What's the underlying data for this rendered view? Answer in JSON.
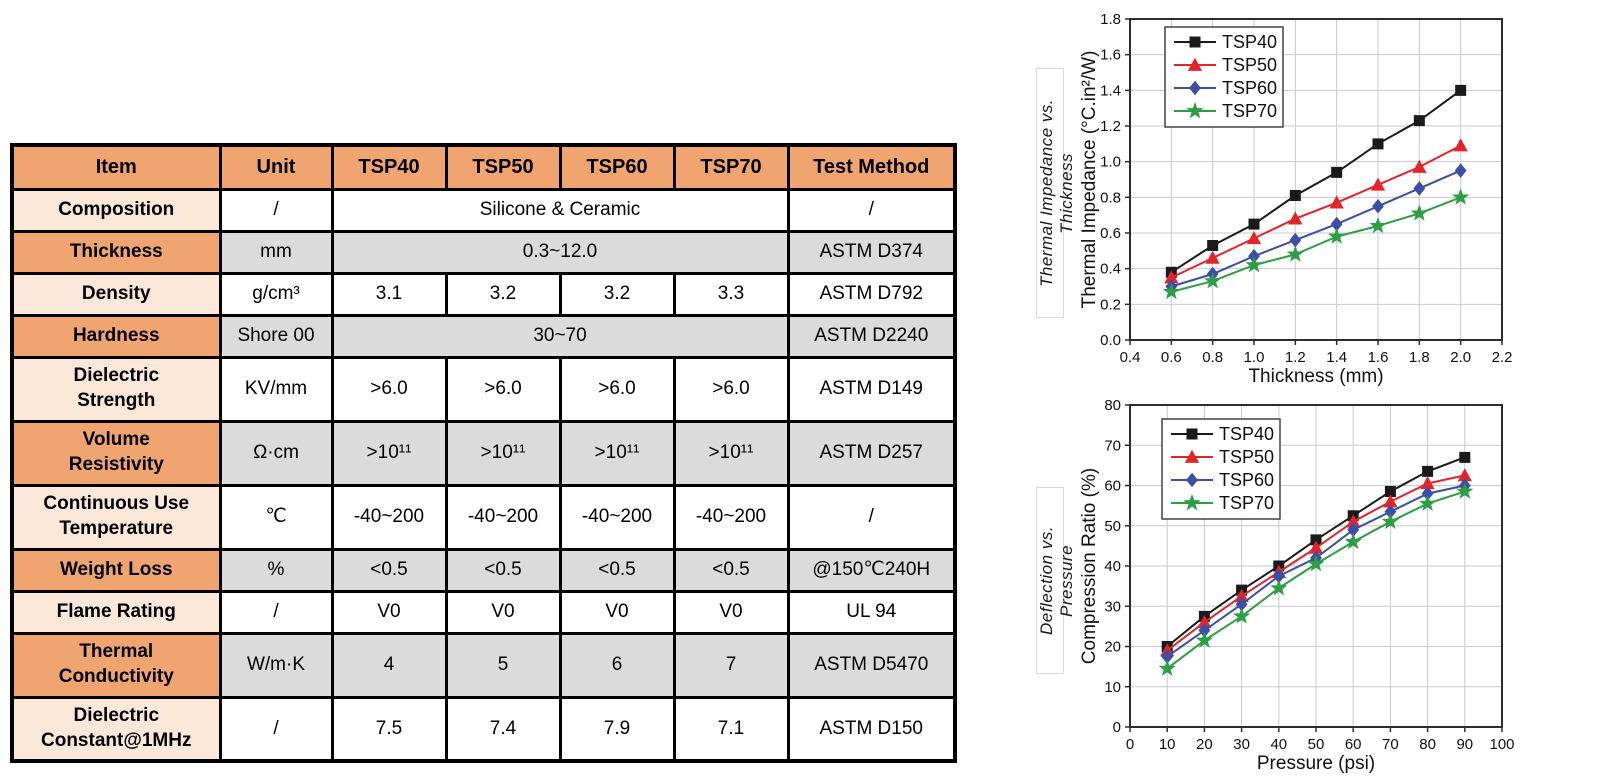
{
  "page": {
    "background": "#ffffff"
  },
  "table": {
    "headers": [
      "Item",
      "Unit",
      "TSP40",
      "TSP50",
      "TSP60",
      "TSP70",
      "Test Method"
    ],
    "rows": [
      {
        "item": "Composition",
        "unit": "/",
        "values": [
          "Silicone & Ceramic"
        ],
        "merged": true,
        "method": "/",
        "shaded": false
      },
      {
        "item": "Thickness",
        "unit": "mm",
        "values": [
          "0.3~12.0"
        ],
        "merged": true,
        "method": "ASTM D374",
        "shaded": true
      },
      {
        "item": "Density",
        "unit": "g/cm³",
        "values": [
          "3.1",
          "3.2",
          "3.2",
          "3.3"
        ],
        "merged": false,
        "method": "ASTM D792",
        "shaded": false
      },
      {
        "item": "Hardness",
        "unit": "Shore 00",
        "values": [
          "30~70"
        ],
        "merged": true,
        "method": "ASTM D2240",
        "shaded": true
      },
      {
        "item": "Dielectric\nStrength",
        "unit": "KV/mm",
        "values": [
          ">6.0",
          ">6.0",
          ">6.0",
          ">6.0"
        ],
        "merged": false,
        "method": "ASTM D149",
        "shaded": false
      },
      {
        "item": "Volume\nResistivity",
        "unit": "Ω·cm",
        "values": [
          ">10¹¹",
          ">10¹¹",
          ">10¹¹",
          ">10¹¹"
        ],
        "merged": false,
        "method": "ASTM D257",
        "shaded": true
      },
      {
        "item": "Continuous Use\nTemperature",
        "unit": "℃",
        "values": [
          "-40~200",
          "-40~200",
          "-40~200",
          "-40~200"
        ],
        "merged": false,
        "method": "/",
        "shaded": false
      },
      {
        "item": "Weight Loss",
        "unit": "%",
        "values": [
          "<0.5",
          "<0.5",
          "<0.5",
          "<0.5"
        ],
        "merged": false,
        "method": "@150℃240H",
        "shaded": true
      },
      {
        "item": "Flame Rating",
        "unit": "/",
        "values": [
          "V0",
          "V0",
          "V0",
          "V0"
        ],
        "merged": false,
        "method": "UL 94",
        "shaded": false
      },
      {
        "item": "Thermal\nConductivity",
        "unit": "W/m·K",
        "values": [
          "4",
          "5",
          "6",
          "7"
        ],
        "merged": false,
        "method": "ASTM D5470",
        "shaded": true
      },
      {
        "item": "Dielectric\nConstant@1MHz",
        "unit": "/",
        "values": [
          "7.5",
          "7.4",
          "7.9",
          "7.1"
        ],
        "merged": false,
        "method": "ASTM D150",
        "shaded": false
      }
    ],
    "colors": {
      "header_orange": "#F0A470",
      "item_light_peach": "#FBE8D8",
      "cell_gray": "#DBDBDB",
      "border": "#000000"
    }
  },
  "chart_data": [
    {
      "type": "line",
      "name": "thermal-impedance-chart",
      "side_label": "Thermal Impedance vs. Thickness",
      "xlabel": "Thickness (mm)",
      "ylabel": "Thermal Impedance (°C.in²/W)",
      "xlim": [
        0.4,
        2.2
      ],
      "xtick_step": 0.2,
      "x_decimals": 1,
      "ylim": [
        0.0,
        1.8
      ],
      "ytick_step": 0.2,
      "y_decimals": 1,
      "grid": true,
      "legend_position": "top-left",
      "x": [
        0.6,
        0.8,
        1.0,
        1.2,
        1.4,
        1.6,
        1.8,
        2.0
      ],
      "series": [
        {
          "name": "TSP40",
          "color": "#1a1a1a",
          "marker": "square",
          "values": [
            0.38,
            0.53,
            0.65,
            0.81,
            0.94,
            1.1,
            1.23,
            1.4
          ]
        },
        {
          "name": "TSP50",
          "color": "#e3242b",
          "marker": "triangle",
          "values": [
            0.35,
            0.46,
            0.57,
            0.68,
            0.77,
            0.87,
            0.97,
            1.09
          ]
        },
        {
          "name": "TSP60",
          "color": "#3a4fa5",
          "marker": "diamond",
          "values": [
            0.3,
            0.37,
            0.47,
            0.56,
            0.65,
            0.75,
            0.85,
            0.95
          ]
        },
        {
          "name": "TSP70",
          "color": "#2e9e45",
          "marker": "star",
          "values": [
            0.27,
            0.33,
            0.42,
            0.48,
            0.58,
            0.64,
            0.71,
            0.8
          ]
        }
      ]
    },
    {
      "type": "line",
      "name": "compression-ratio-chart",
      "side_label": "Deflection vs. Pressure",
      "xlabel": "Pressure (psi)",
      "ylabel": "Compression Ratio (%)",
      "xlim": [
        0,
        100
      ],
      "xtick_step": 10,
      "x_decimals": 0,
      "ylim": [
        0,
        80
      ],
      "ytick_step": 10,
      "y_decimals": 0,
      "grid": true,
      "legend_position": "top-left",
      "x": [
        10,
        20,
        30,
        40,
        50,
        60,
        70,
        80,
        90
      ],
      "series": [
        {
          "name": "TSP40",
          "color": "#1a1a1a",
          "marker": "square",
          "values": [
            20.0,
            27.5,
            34.0,
            40.0,
            46.5,
            52.5,
            58.5,
            63.5,
            67.0
          ]
        },
        {
          "name": "TSP50",
          "color": "#e3242b",
          "marker": "triangle",
          "values": [
            19.0,
            26.0,
            32.5,
            38.5,
            44.5,
            51.0,
            56.0,
            60.5,
            62.5
          ]
        },
        {
          "name": "TSP60",
          "color": "#3a4fa5",
          "marker": "diamond",
          "values": [
            17.5,
            24.0,
            30.5,
            37.5,
            42.0,
            49.0,
            53.5,
            58.0,
            60.0
          ]
        },
        {
          "name": "TSP70",
          "color": "#2e9e45",
          "marker": "star",
          "values": [
            14.5,
            21.5,
            27.5,
            34.5,
            40.5,
            46.0,
            51.0,
            55.5,
            58.5
          ]
        }
      ]
    }
  ]
}
